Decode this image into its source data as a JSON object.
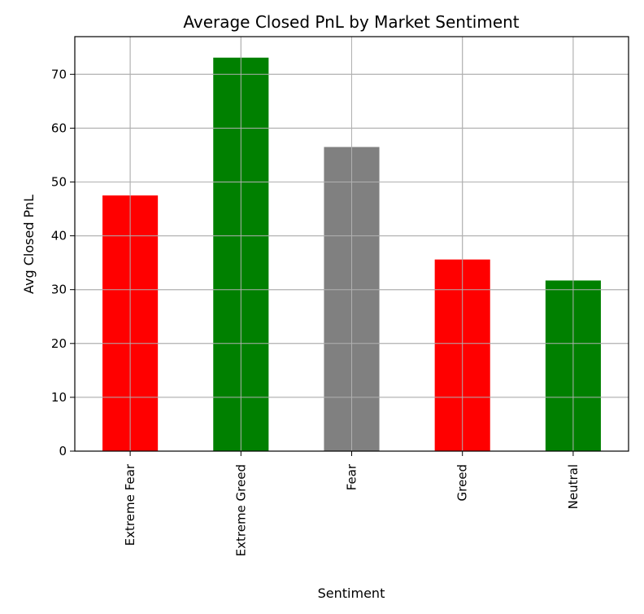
{
  "chart_data": {
    "type": "bar",
    "title": "Average Closed PnL by Market Sentiment",
    "xlabel": "Sentiment",
    "ylabel": "Avg Closed PnL",
    "categories": [
      "Extreme Fear",
      "Extreme Greed",
      "Fear",
      "Greed",
      "Neutral"
    ],
    "values": [
      47.5,
      73.1,
      56.5,
      35.6,
      31.7
    ],
    "bar_colors": [
      "#ff0000",
      "#008000",
      "#808080",
      "#ff0000",
      "#008000"
    ],
    "ylim": [
      0,
      77
    ],
    "yticks": [
      0,
      10,
      20,
      30,
      40,
      50,
      60,
      70
    ],
    "grid": true,
    "legend": "none"
  }
}
